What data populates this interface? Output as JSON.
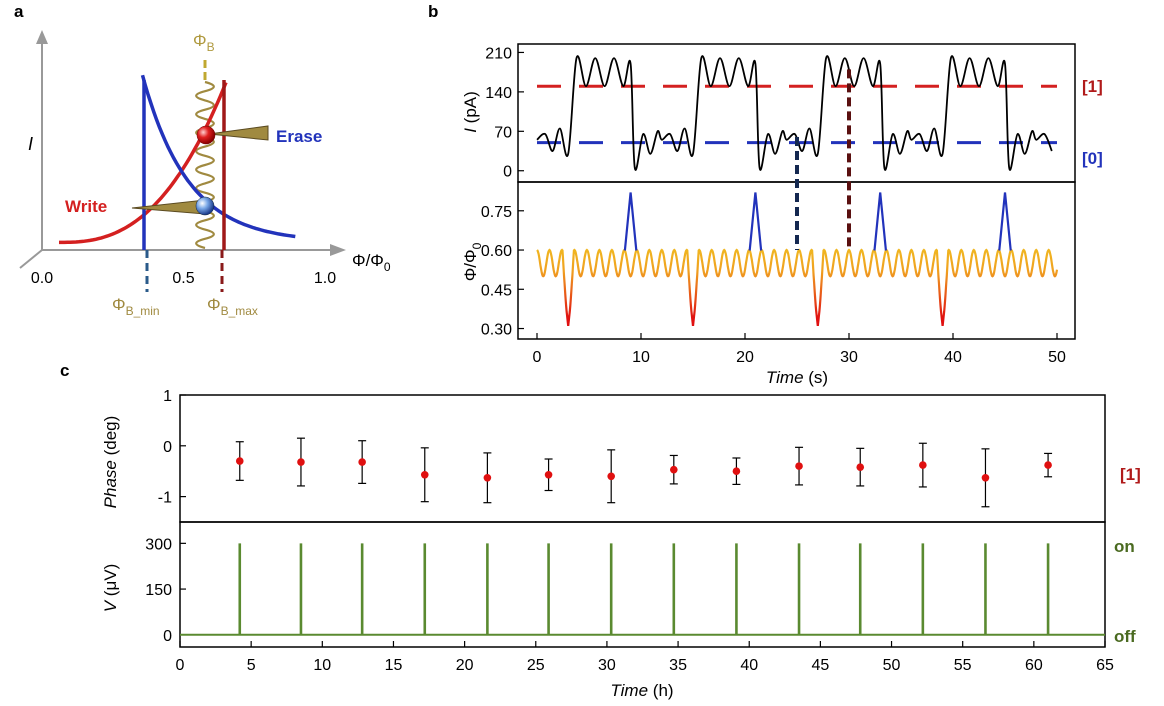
{
  "colors": {
    "red": "#d42020",
    "blue": "#2233bb",
    "gold": "#b09030",
    "dark_red": "#5a1010",
    "dark_blue": "#142850",
    "green": "#5a8a30",
    "dark_green": "#4a6a20",
    "label_gold": "#a08a40"
  },
  "panel_a": {
    "letter": "a",
    "ylabel": "I",
    "xlabel_main": "Φ/Φ",
    "xlabel_sub": "0",
    "xticks": [
      "0.0",
      "0.5",
      "1.0"
    ],
    "phi_b_main": "Φ",
    "phi_b_sub": "B",
    "phi_min_main": "Φ",
    "phi_min_sub": "B_min",
    "phi_max_main": "Φ",
    "phi_max_sub": "B_max",
    "write_label": "Write",
    "erase_label": "Erase",
    "icons": [
      "spring-icon",
      "red-ball-icon",
      "blue-ball-icon"
    ]
  },
  "panel_b": {
    "letter": "b",
    "state1": "[1]",
    "state0": "[0]",
    "top_ylabel_main": "I",
    "top_ylabel_unit": " (pA)",
    "bottom_ylabel_main": "Φ/Φ",
    "bottom_ylabel_sub": "0",
    "xlabel_main": "Time",
    "xlabel_unit": " (s)"
  },
  "panel_c": {
    "letter": "c",
    "state_label": "[1]",
    "on_label": "on",
    "off_label": "off",
    "top_ylabel_main": "Phase",
    "top_ylabel_unit": " (deg)",
    "bottom_ylabel_main": "V",
    "bottom_ylabel_unit": " (μV)",
    "xlabel_main": "Time",
    "xlabel_unit": " (h)"
  },
  "chart_data": [
    {
      "panel": "a",
      "type": "line",
      "xlabel": "Φ/Φ0",
      "ylabel": "I",
      "xlim": [
        0,
        1.0
      ],
      "xticks": [
        0.0,
        0.5,
        1.0
      ],
      "series": [
        {
          "name": "Write",
          "x": [
            0.06,
            0.2,
            0.3,
            0.4,
            0.5,
            0.58,
            0.65
          ],
          "y": [
            0.06,
            0.09,
            0.15,
            0.27,
            0.48,
            0.68,
            0.9
          ]
        },
        {
          "name": "Erase",
          "x": [
            0.35,
            0.4,
            0.5,
            0.6,
            0.7,
            0.8,
            0.9
          ],
          "y": [
            0.92,
            0.62,
            0.35,
            0.2,
            0.12,
            0.07,
            0.05
          ]
        }
      ],
      "markers": [
        {
          "name": "ΦB_min",
          "x": 0.37
        },
        {
          "name": "ΦB_max",
          "x": 0.63
        }
      ]
    },
    {
      "panel": "b-top",
      "type": "line",
      "xlabel": "Time (s)",
      "ylabel": "I (pA)",
      "xlim": [
        0,
        50
      ],
      "ylim": [
        -20,
        225
      ],
      "yticks": [
        0,
        70,
        140,
        210
      ],
      "levels": [
        {
          "name": "[1]",
          "y": 150
        },
        {
          "name": "[0]",
          "y": 50
        }
      ],
      "period_s": 12,
      "pattern": {
        "t": [
          0,
          0.8,
          1.5,
          2.2,
          3.0,
          3.8,
          4.7,
          5.6,
          6.5,
          7.4,
          8.3,
          9.0,
          9.4,
          10.2,
          10.9,
          11.6
        ],
        "y": [
          55,
          65,
          35,
          75,
          30,
          200,
          150,
          200,
          150,
          200,
          150,
          190,
          5,
          65,
          30,
          70
        ]
      }
    },
    {
      "panel": "b-bottom",
      "type": "line",
      "xlabel": "Time (s)",
      "ylabel": "Φ/Φ0",
      "xlim": [
        0,
        50
      ],
      "ylim": [
        0.26,
        0.86
      ],
      "yticks": [
        0.3,
        0.45,
        0.6,
        0.75
      ],
      "xticks": [
        0,
        10,
        20,
        30,
        40,
        50
      ],
      "baseline": {
        "mean": 0.55,
        "amplitude": 0.05,
        "period_s": 1.2
      },
      "dips": [
        {
          "t": 3,
          "y": 0.31
        },
        {
          "t": 15,
          "y": 0.31
        },
        {
          "t": 27,
          "y": 0.31
        },
        {
          "t": 39,
          "y": 0.31
        }
      ],
      "spikes": [
        {
          "t": 9,
          "y": 0.82
        },
        {
          "t": 21,
          "y": 0.82
        },
        {
          "t": 33,
          "y": 0.82
        },
        {
          "t": 45,
          "y": 0.82
        }
      ],
      "markers": [
        {
          "t": 25
        },
        {
          "t": 30
        }
      ]
    },
    {
      "panel": "c-top",
      "type": "scatter",
      "xlabel": "Time (h)",
      "ylabel": "Phase (deg)",
      "xlim": [
        0,
        65
      ],
      "ylim": [
        -1.5,
        1
      ],
      "yticks": [
        1,
        0,
        -1
      ],
      "x": [
        4.2,
        8.5,
        12.8,
        17.2,
        21.6,
        25.9,
        30.3,
        34.7,
        39.1,
        43.5,
        47.8,
        52.2,
        56.6,
        61.0
      ],
      "y": [
        -0.3,
        -0.32,
        -0.32,
        -0.57,
        -0.63,
        -0.57,
        -0.6,
        -0.47,
        -0.5,
        -0.4,
        -0.42,
        -0.38,
        -0.63,
        -0.38
      ],
      "err": [
        0.38,
        0.47,
        0.42,
        0.53,
        0.49,
        0.31,
        0.52,
        0.28,
        0.26,
        0.37,
        0.37,
        0.43,
        0.57,
        0.23
      ]
    },
    {
      "panel": "c-bottom",
      "type": "line",
      "xlabel": "Time (h)",
      "ylabel": "V (μV)",
      "xlim": [
        0,
        65
      ],
      "ylim": [
        -40,
        370
      ],
      "yticks": [
        0,
        150,
        300
      ],
      "xticks": [
        0,
        5,
        10,
        15,
        20,
        25,
        30,
        35,
        40,
        45,
        50,
        55,
        60,
        65
      ],
      "pulses_x": [
        4.2,
        8.5,
        12.8,
        17.2,
        21.6,
        25.9,
        30.3,
        34.7,
        39.1,
        43.5,
        47.8,
        52.2,
        56.6,
        61.0
      ],
      "pulse_height": 300,
      "baseline": 0
    }
  ]
}
